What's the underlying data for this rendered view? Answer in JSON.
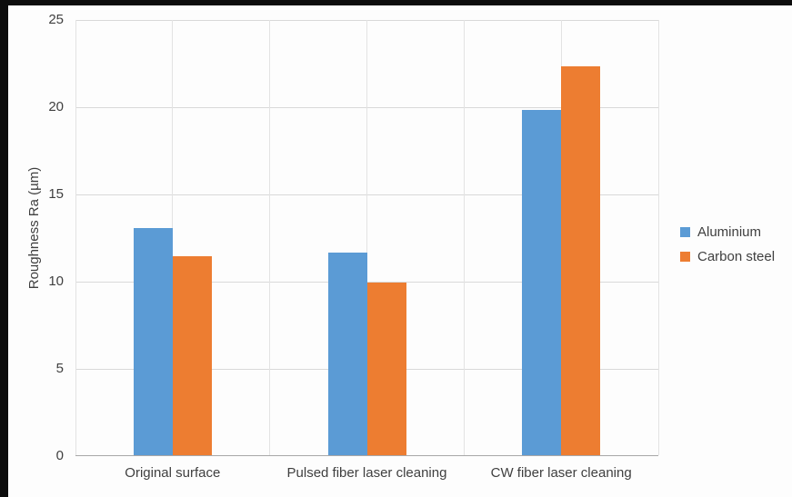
{
  "chart_data": {
    "type": "bar",
    "ylabel": "Roughness Ra (µm)",
    "categories": [
      "Original surface",
      "Pulsed fiber laser cleaning",
      "CW fiber laser cleaning"
    ],
    "series": [
      {
        "name": "Aluminium",
        "color": "#5B9BD5",
        "values": [
          13.0,
          11.6,
          19.8
        ]
      },
      {
        "name": "Carbon steel",
        "color": "#ED7D31",
        "values": [
          11.4,
          9.9,
          22.3
        ]
      }
    ],
    "ylim": [
      0,
      25
    ],
    "yticks": [
      0,
      5,
      10,
      15,
      20,
      25
    ],
    "grid": true,
    "legend_position": "right"
  }
}
